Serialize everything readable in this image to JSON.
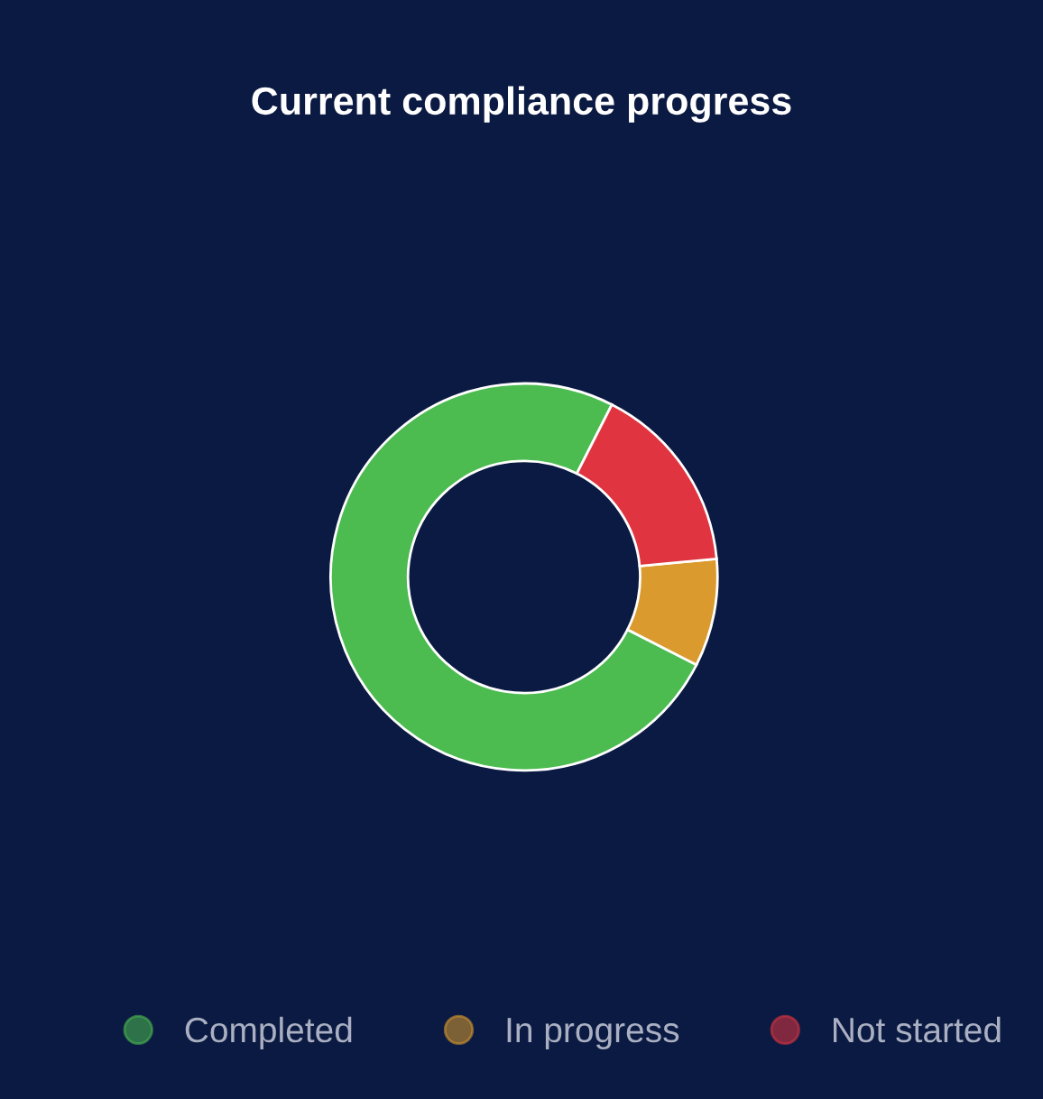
{
  "chart_data": {
    "type": "donut",
    "title": "Current compliance progress",
    "categories": [
      "Completed",
      "In progress",
      "Not started"
    ],
    "values": [
      75,
      9,
      16
    ],
    "colors": [
      "#4cbb50",
      "#db9a2e",
      "#e03540"
    ],
    "legend": "bottom"
  }
}
